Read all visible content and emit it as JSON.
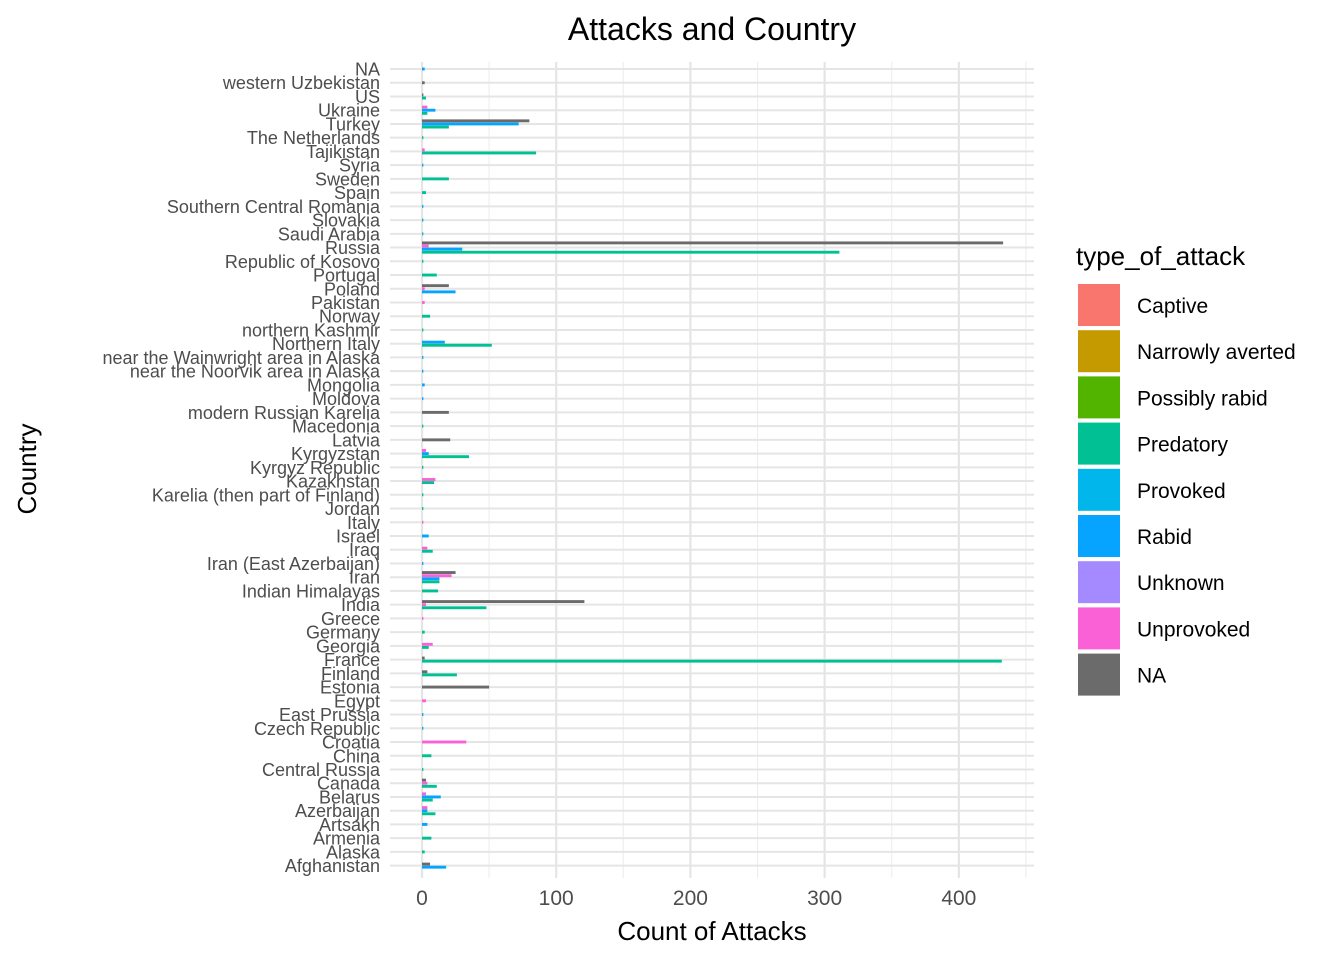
{
  "chart_data": {
    "type": "bar",
    "orientation": "horizontal",
    "title": "Attacks and Country",
    "xlabel": "Count of Attacks",
    "ylabel": "Country",
    "xlim": [
      -23,
      455
    ],
    "x_ticks": [
      0,
      100,
      200,
      300,
      400
    ],
    "grid": true,
    "legend_title": "type_of_attack",
    "legend_position": "right",
    "categories": [
      "NA",
      "western Uzbekistan",
      "US",
      "Ukraine",
      "Turkey",
      "The Netherlands",
      "Tajikistan",
      "Syria",
      "Sweden",
      "Spain",
      "Southern Central Romania",
      "Slovakia",
      "Saudi Arabia",
      "Russia",
      "Republic of Kosovo",
      "Portugal",
      "Poland",
      "Pakistan",
      "Norway",
      "northern Kashmir",
      "Northern Italy",
      "near the Wainwright area in Alaska",
      "near the Noorvik area in Alaska",
      "Mongolia",
      "Moldova",
      "modern Russian Karelia",
      "Macedonia",
      "Latvia",
      "Kyrgyzstan",
      "Kyrgyz Republic",
      "Kazakhstan",
      "Karelia (then part of Finland)",
      "Jordan",
      "Italy",
      "Israel",
      "Iraq",
      "Iran (East Azerbaijan)",
      "Iran",
      "Indian Himalayas",
      "India",
      "Greece",
      "Germany",
      "Georgia",
      "France",
      "Finland",
      "Estonia",
      "Egypt",
      "East Prussia",
      "Czech Republic",
      "Croatia",
      "China",
      "Central Russia",
      "Canada",
      "Belarus",
      "Azerbaijan",
      "Artsakh",
      "Armenia",
      "Alaska",
      "Afghanistan"
    ],
    "series": [
      {
        "name": "Captive",
        "color": "#F8766D"
      },
      {
        "name": "Narrowly averted",
        "color": "#C49A00"
      },
      {
        "name": "Possibly rabid",
        "color": "#53B400"
      },
      {
        "name": "Predatory",
        "color": "#00C094"
      },
      {
        "name": "Provoked",
        "color": "#00B6EB"
      },
      {
        "name": "Rabid",
        "color": "#06A4FF"
      },
      {
        "name": "Unknown",
        "color": "#A58AFF"
      },
      {
        "name": "Unprovoked",
        "color": "#FB61D7"
      },
      {
        "name": "NA",
        "color": "#6B6B6B"
      }
    ],
    "bars": {
      "NA": {
        "Rabid": 2
      },
      "western Uzbekistan": {
        "NA": 2
      },
      "US": {
        "NA": 1,
        "Predatory": 3
      },
      "Ukraine": {
        "Unprovoked": 4,
        "Rabid": 10,
        "Predatory": 4
      },
      "Turkey": {
        "NA": 80,
        "Rabid": 72,
        "Predatory": 20
      },
      "The Netherlands": {
        "Predatory": 1
      },
      "Tajikistan": {
        "Unprovoked": 2,
        "Predatory": 85
      },
      "Syria": {
        "Rabid": 1
      },
      "Sweden": {
        "Predatory": 20
      },
      "Spain": {
        "Predatory": 3
      },
      "Southern Central Romania": {
        "Rabid": 1
      },
      "Slovakia": {
        "Rabid": 1
      },
      "Saudi Arabia": {
        "Provoked": 1
      },
      "Russia": {
        "NA": 433,
        "Unprovoked": 5,
        "Rabid": 30,
        "Predatory": 311
      },
      "Republic of Kosovo": {
        "Predatory": 1
      },
      "Portugal": {
        "Predatory": 11
      },
      "Poland": {
        "NA": 20,
        "Unprovoked": 2,
        "Rabid": 25
      },
      "Pakistan": {
        "Unprovoked": 2
      },
      "Norway": {
        "Predatory": 6
      },
      "northern Kashmir": {
        "Predatory": 1
      },
      "Northern Italy": {
        "Rabid": 17,
        "Predatory": 52
      },
      "near the Wainwright area in Alaska": {
        "Rabid": 1
      },
      "near the Noorvik area in Alaska": {
        "Rabid": 1
      },
      "Mongolia": {
        "Rabid": 2
      },
      "Moldova": {
        "Rabid": 1
      },
      "modern Russian Karelia": {
        "NA": 20
      },
      "Macedonia": {
        "Predatory": 1
      },
      "Latvia": {
        "NA": 21
      },
      "Kyrgyzstan": {
        "Unprovoked": 3,
        "Rabid": 5,
        "Predatory": 35
      },
      "Kyrgyz Republic": {
        "Predatory": 1
      },
      "Kazakhstan": {
        "Unprovoked": 10,
        "Predatory": 9
      },
      "Karelia (then part of Finland)": {
        "Predatory": 1
      },
      "Jordan": {
        "Predatory": 1
      },
      "Italy": {
        "Unprovoked": 1
      },
      "Israel": {
        "Rabid": 5
      },
      "Iraq": {
        "Unprovoked": 4,
        "Predatory": 8
      },
      "Iran (East Azerbaijan)": {
        "Rabid": 1
      },
      "Iran": {
        "NA": 25,
        "Unprovoked": 22,
        "Rabid": 13,
        "Predatory": 13
      },
      "Indian Himalayas": {
        "Predatory": 12
      },
      "India": {
        "NA": 121,
        "Unprovoked": 3,
        "Predatory": 48
      },
      "Greece": {
        "Unprovoked": 1
      },
      "Germany": {
        "Predatory": 2
      },
      "Georgia": {
        "Unprovoked": 8,
        "Predatory": 5
      },
      "France": {
        "NA": 2,
        "Predatory": 432
      },
      "Finland": {
        "NA": 4,
        "Predatory": 26
      },
      "Estonia": {
        "NA": 50
      },
      "Egypt": {
        "Unprovoked": 3
      },
      "East Prussia": {
        "Rabid": 1
      },
      "Czech Republic": {
        "Rabid": 1
      },
      "Croatia": {
        "Unprovoked": 33
      },
      "China": {
        "Predatory": 7
      },
      "Central Russia": {
        "Predatory": 1
      },
      "Canada": {
        "NA": 3,
        "Unprovoked": 4,
        "Predatory": 11
      },
      "Belarus": {
        "Unprovoked": 3,
        "Rabid": 14,
        "Predatory": 8
      },
      "Azerbaijan": {
        "Unprovoked": 4,
        "Rabid": 4,
        "Predatory": 10
      },
      "Artsakh": {
        "Rabid": 4
      },
      "Armenia": {
        "Predatory": 7
      },
      "Alaska": {
        "Predatory": 2
      },
      "Afghanistan": {
        "NA": 6,
        "Rabid": 18
      }
    }
  }
}
